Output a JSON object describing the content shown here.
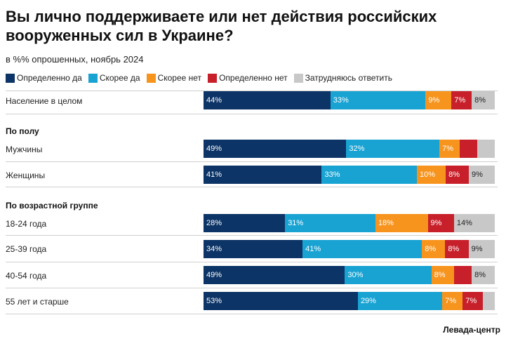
{
  "title": "Вы лично поддерживаете или нет действия российских вооруженных сил в Украине?",
  "subtitle": "в %% опрошенных, ноябрь 2024",
  "source": "Левада-центр",
  "legend": [
    {
      "label": "Определенно да",
      "color": "#0c3466"
    },
    {
      "label": "Скорее да",
      "color": "#19a3d3"
    },
    {
      "label": "Скорее нет",
      "color": "#f7941d"
    },
    {
      "label": "Определенно нет",
      "color": "#c8202b"
    },
    {
      "label": "Затрудняюсь ответить",
      "color": "#c8c8c8"
    }
  ],
  "groups": {
    "gender": "По полу",
    "age": "По возрастной группе"
  },
  "chart_data": {
    "type": "bar",
    "orientation": "horizontal",
    "stacked": true,
    "title": "Вы лично поддерживаете или нет действия российских вооруженных сил в Украине?",
    "subtitle": "в %% опрошенных, ноябрь 2024",
    "categories": [
      "Население в целом",
      "Мужчины",
      "Женщины",
      "18-24 года",
      "25-39 года",
      "40-54 года",
      "55 лет и старше"
    ],
    "series": [
      {
        "name": "Определенно да",
        "color": "#0c3466",
        "values": [
          44,
          49,
          41,
          28,
          34,
          49,
          53
        ]
      },
      {
        "name": "Скорее да",
        "color": "#19a3d3",
        "values": [
          33,
          32,
          33,
          31,
          41,
          30,
          29
        ]
      },
      {
        "name": "Скорее нет",
        "color": "#f7941d",
        "values": [
          9,
          7,
          10,
          18,
          8,
          8,
          7
        ]
      },
      {
        "name": "Определенно нет",
        "color": "#c8202b",
        "values": [
          7,
          6,
          8,
          9,
          8,
          6,
          7
        ]
      },
      {
        "name": "Затрудняюсь ответить",
        "color": "#c8c8c8",
        "values": [
          8,
          6,
          9,
          14,
          9,
          8,
          4
        ]
      }
    ],
    "labels": [
      [
        "44%",
        "33%",
        "9%",
        "7%",
        "8%"
      ],
      [
        "49%",
        "32%",
        "7%",
        "",
        ""
      ],
      [
        "41%",
        "33%",
        "10%",
        "8%",
        "9%"
      ],
      [
        "28%",
        "31%",
        "18%",
        "9%",
        "14%"
      ],
      [
        "34%",
        "41%",
        "8%",
        "8%",
        "9%"
      ],
      [
        "49%",
        "30%",
        "8%",
        "",
        "8%"
      ],
      [
        "53%",
        "29%",
        "7%",
        "7%",
        ""
      ]
    ],
    "xlim": [
      0,
      100
    ]
  }
}
